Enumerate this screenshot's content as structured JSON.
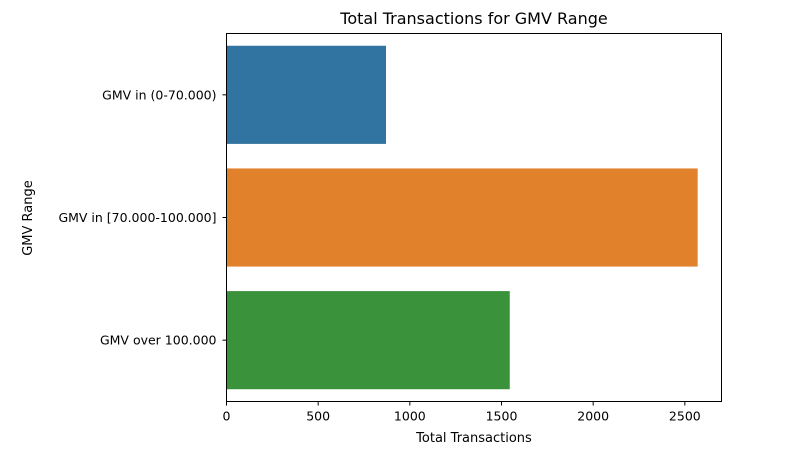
{
  "chart_data": {
    "type": "bar",
    "orientation": "horizontal",
    "title": "Total Transactions for GMV Range",
    "xlabel": "Total Transactions",
    "ylabel": "GMV Range",
    "categories": [
      "GMV in (0-70.000)",
      "GMV in [70.000-100.000]",
      "GMV over 100.000"
    ],
    "values": [
      870,
      2570,
      1545
    ],
    "colors": [
      "#3274a1",
      "#e1812c",
      "#3a923a"
    ],
    "xlim": [
      0,
      2700
    ],
    "xticks": [
      0,
      500,
      1000,
      1500,
      2000,
      2500
    ],
    "grid": false,
    "legend": "none"
  }
}
